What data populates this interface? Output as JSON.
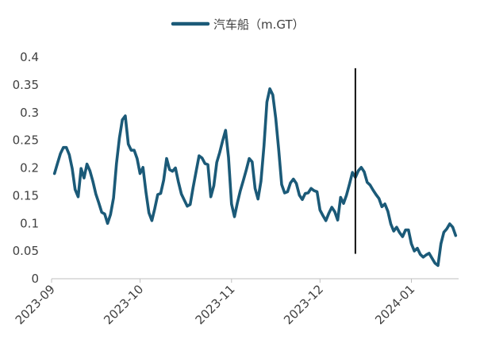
{
  "chart_data": {
    "type": "line",
    "title": "",
    "xlabel": "",
    "ylabel": "",
    "legend": "top",
    "grid": false,
    "xlim": [
      "2023-09-01",
      "2024-01-17"
    ],
    "ylim": [
      0,
      0.4
    ],
    "x_ticks": [
      "2023-09",
      "2023-10",
      "2023-11",
      "2023-12",
      "2024-01"
    ],
    "y_ticks": [
      "0",
      "0.05",
      "0.1",
      "0.15",
      "0.2",
      "0.25",
      "0.3",
      "0.35",
      "0.4"
    ],
    "x": [
      "2023-09-02",
      "2023-09-03",
      "2023-09-04",
      "2023-09-05",
      "2023-09-06",
      "2023-09-07",
      "2023-09-08",
      "2023-09-09",
      "2023-09-10",
      "2023-09-11",
      "2023-09-12",
      "2023-09-13",
      "2023-09-14",
      "2023-09-15",
      "2023-09-16",
      "2023-09-17",
      "2023-09-18",
      "2023-09-19",
      "2023-09-20",
      "2023-09-21",
      "2023-09-22",
      "2023-09-23",
      "2023-09-24",
      "2023-09-25",
      "2023-09-26",
      "2023-09-27",
      "2023-09-28",
      "2023-09-29",
      "2023-09-30",
      "2023-10-01",
      "2023-10-02",
      "2023-10-03",
      "2023-10-04",
      "2023-10-05",
      "2023-10-06",
      "2023-10-07",
      "2023-10-08",
      "2023-10-09",
      "2023-10-10",
      "2023-10-11",
      "2023-10-12",
      "2023-10-13",
      "2023-10-14",
      "2023-10-15",
      "2023-10-16",
      "2023-10-17",
      "2023-10-18",
      "2023-10-19",
      "2023-10-20",
      "2023-10-21",
      "2023-10-22",
      "2023-10-23",
      "2023-10-24",
      "2023-10-25",
      "2023-10-26",
      "2023-10-27",
      "2023-10-28",
      "2023-10-29",
      "2023-10-30",
      "2023-10-31",
      "2023-11-01",
      "2023-11-02",
      "2023-11-03",
      "2023-11-04",
      "2023-11-05",
      "2023-11-06",
      "2023-11-07",
      "2023-11-08",
      "2023-11-09",
      "2023-11-10",
      "2023-11-11",
      "2023-11-12",
      "2023-11-13",
      "2023-11-14",
      "2023-11-15",
      "2023-11-16",
      "2023-11-17",
      "2023-11-18",
      "2023-11-19",
      "2023-11-20",
      "2023-11-21",
      "2023-11-22",
      "2023-11-23",
      "2023-11-24",
      "2023-11-25",
      "2023-11-26",
      "2023-11-27",
      "2023-11-28",
      "2023-11-29",
      "2023-11-30",
      "2023-12-01",
      "2023-12-02",
      "2023-12-03",
      "2023-12-04",
      "2023-12-05",
      "2023-12-06",
      "2023-12-07",
      "2023-12-08",
      "2023-12-09",
      "2023-12-10",
      "2023-12-11",
      "2023-12-12",
      "2023-12-13",
      "2023-12-14",
      "2023-12-15",
      "2023-12-16",
      "2023-12-17",
      "2023-12-18",
      "2023-12-19",
      "2023-12-20",
      "2023-12-21",
      "2023-12-22",
      "2023-12-23",
      "2023-12-24",
      "2023-12-25",
      "2023-12-26",
      "2023-12-27",
      "2023-12-28",
      "2023-12-29",
      "2023-12-30",
      "2023-12-31",
      "2024-01-01",
      "2024-01-02",
      "2024-01-03",
      "2024-01-04",
      "2024-01-05",
      "2024-01-06",
      "2024-01-07",
      "2024-01-08",
      "2024-01-09",
      "2024-01-10",
      "2024-01-11",
      "2024-01-12",
      "2024-01-13",
      "2024-01-14",
      "2024-01-15",
      "2024-01-16"
    ],
    "series": [
      {
        "name": "汽车船（m.GT）",
        "color": "#1b5a78",
        "values": [
          0.19,
          0.208,
          0.226,
          0.237,
          0.237,
          0.224,
          0.199,
          0.161,
          0.148,
          0.199,
          0.182,
          0.207,
          0.195,
          0.176,
          0.153,
          0.137,
          0.12,
          0.117,
          0.1,
          0.116,
          0.146,
          0.208,
          0.254,
          0.287,
          0.294,
          0.243,
          0.232,
          0.232,
          0.217,
          0.19,
          0.201,
          0.156,
          0.119,
          0.105,
          0.127,
          0.152,
          0.154,
          0.178,
          0.217,
          0.197,
          0.194,
          0.2,
          0.175,
          0.153,
          0.142,
          0.131,
          0.134,
          0.165,
          0.194,
          0.222,
          0.218,
          0.208,
          0.206,
          0.148,
          0.168,
          0.21,
          0.228,
          0.249,
          0.268,
          0.219,
          0.135,
          0.112,
          0.137,
          0.159,
          0.177,
          0.196,
          0.217,
          0.211,
          0.163,
          0.144,
          0.176,
          0.24,
          0.319,
          0.343,
          0.332,
          0.29,
          0.234,
          0.17,
          0.155,
          0.157,
          0.173,
          0.18,
          0.172,
          0.151,
          0.143,
          0.154,
          0.155,
          0.163,
          0.159,
          0.157,
          0.124,
          0.114,
          0.105,
          0.118,
          0.129,
          0.121,
          0.106,
          0.147,
          0.136,
          0.151,
          0.171,
          0.192,
          0.183,
          0.195,
          0.201,
          0.193,
          0.174,
          0.169,
          0.16,
          0.152,
          0.145,
          0.13,
          0.135,
          0.122,
          0.099,
          0.086,
          0.093,
          0.083,
          0.076,
          0.088,
          0.088,
          0.063,
          0.05,
          0.055,
          0.044,
          0.039,
          0.043,
          0.046,
          0.037,
          0.028,
          0.024,
          0.063,
          0.084,
          0.09,
          0.099,
          0.093,
          0.078
        ]
      }
    ],
    "vertical_lines": [
      {
        "x": "2023-12-13",
        "y_range": [
          0.045,
          0.38
        ],
        "color": "#111111"
      }
    ]
  }
}
